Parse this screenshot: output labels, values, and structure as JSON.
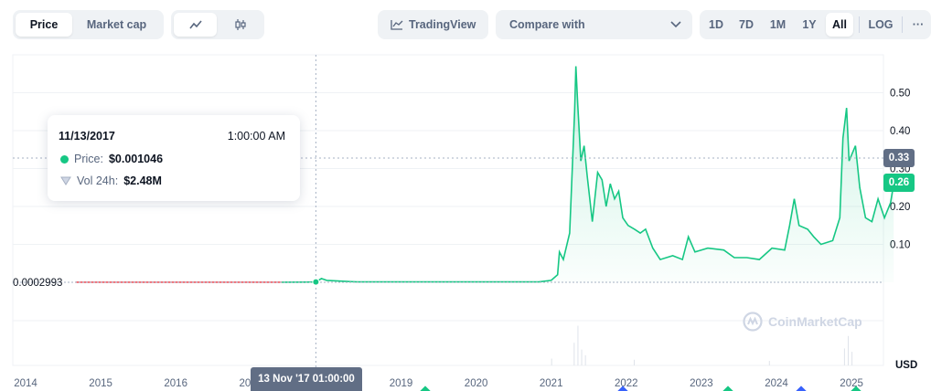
{
  "toolbar": {
    "price_tab": "Price",
    "market_cap_tab": "Market cap",
    "line_icon": "line-chart-icon",
    "candle_icon": "candlestick-icon",
    "tradingview_label": "TradingView",
    "compare_label": "Compare with",
    "ranges": [
      "1D",
      "7D",
      "1M",
      "1Y",
      "All"
    ],
    "active_range": "All",
    "log_label": "LOG",
    "more_label": "···"
  },
  "tooltip": {
    "date": "11/13/2017",
    "time": "1:00:00 AM",
    "price_label": "Price:",
    "price_value": "$0.001046",
    "vol_label": "Vol 24h:",
    "vol_value": "$2.48M"
  },
  "crosshair": {
    "x_label": "13 Nov '17 01:00:00",
    "y_badge": "0.33",
    "current_badge": "0.26",
    "baseline_label": "0.0002993"
  },
  "watermark": "CoinMarketCap",
  "currency": "USD",
  "colors": {
    "line": "#16c784",
    "history": "#ea3943",
    "grid": "#eff2f5",
    "badge_gray": "#616e85"
  },
  "chart_data": {
    "type": "line",
    "x_ticks": [
      "2014",
      "2015",
      "2016",
      "2017",
      "2018",
      "2019",
      "2020",
      "2021",
      "2022",
      "2023",
      "2024",
      "2025"
    ],
    "y_ticks": [
      "0.10",
      "0.20",
      "0.30",
      "0.40",
      "0.50"
    ],
    "ylim": [
      0,
      0.6
    ],
    "grid": true,
    "series": [
      {
        "values_by_date": [
          [
            "2014-09-01",
            0.0003
          ],
          [
            "2015-06-01",
            0.0003
          ],
          [
            "2016-06-01",
            0.0003
          ],
          [
            "2017-06-01",
            0.0003
          ],
          [
            "2017-10-01",
            0.0006
          ],
          [
            "2017-11-13",
            0.001
          ],
          [
            "2017-12-10",
            0.01
          ],
          [
            "2018-01-05",
            0.005
          ],
          [
            "2018-06-01",
            0.001
          ],
          [
            "2019-06-01",
            0.001
          ],
          [
            "2020-06-01",
            0.001
          ],
          [
            "2020-11-01",
            0.001
          ],
          [
            "2021-01-01",
            0.005
          ],
          [
            "2021-02-01",
            0.02
          ],
          [
            "2021-02-10",
            0.08
          ],
          [
            "2021-03-01",
            0.06
          ],
          [
            "2021-04-01",
            0.13
          ],
          [
            "2021-04-25",
            0.45
          ],
          [
            "2021-05-01",
            0.57
          ],
          [
            "2021-05-10",
            0.47
          ],
          [
            "2021-05-25",
            0.32
          ],
          [
            "2021-06-10",
            0.36
          ],
          [
            "2021-06-25",
            0.28
          ],
          [
            "2021-07-20",
            0.16
          ],
          [
            "2021-08-15",
            0.29
          ],
          [
            "2021-09-05",
            0.27
          ],
          [
            "2021-09-25",
            0.2
          ],
          [
            "2021-10-15",
            0.26
          ],
          [
            "2021-11-05",
            0.22
          ],
          [
            "2021-11-25",
            0.24
          ],
          [
            "2021-12-15",
            0.17
          ],
          [
            "2022-01-10",
            0.15
          ],
          [
            "2022-02-10",
            0.14
          ],
          [
            "2022-03-10",
            0.13
          ],
          [
            "2022-04-05",
            0.14
          ],
          [
            "2022-05-10",
            0.09
          ],
          [
            "2022-06-15",
            0.06
          ],
          [
            "2022-08-15",
            0.07
          ],
          [
            "2022-10-01",
            0.06
          ],
          [
            "2022-10-30",
            0.12
          ],
          [
            "2022-12-01",
            0.08
          ],
          [
            "2023-02-01",
            0.09
          ],
          [
            "2023-04-20",
            0.085
          ],
          [
            "2023-06-10",
            0.065
          ],
          [
            "2023-08-10",
            0.065
          ],
          [
            "2023-10-10",
            0.06
          ],
          [
            "2023-12-10",
            0.09
          ],
          [
            "2024-02-10",
            0.085
          ],
          [
            "2024-03-05",
            0.15
          ],
          [
            "2024-03-28",
            0.22
          ],
          [
            "2024-04-20",
            0.15
          ],
          [
            "2024-06-01",
            0.14
          ],
          [
            "2024-07-01",
            0.12
          ],
          [
            "2024-08-05",
            0.1
          ],
          [
            "2024-10-01",
            0.11
          ],
          [
            "2024-11-05",
            0.17
          ],
          [
            "2024-11-20",
            0.38
          ],
          [
            "2024-12-08",
            0.46
          ],
          [
            "2024-12-20",
            0.32
          ],
          [
            "2025-01-20",
            0.36
          ],
          [
            "2025-02-10",
            0.25
          ],
          [
            "2025-03-10",
            0.17
          ],
          [
            "2025-04-10",
            0.16
          ],
          [
            "2025-05-10",
            0.22
          ],
          [
            "2025-06-10",
            0.17
          ],
          [
            "2025-07-10",
            0.21
          ],
          [
            "2025-07-25",
            0.26
          ]
        ]
      }
    ]
  }
}
